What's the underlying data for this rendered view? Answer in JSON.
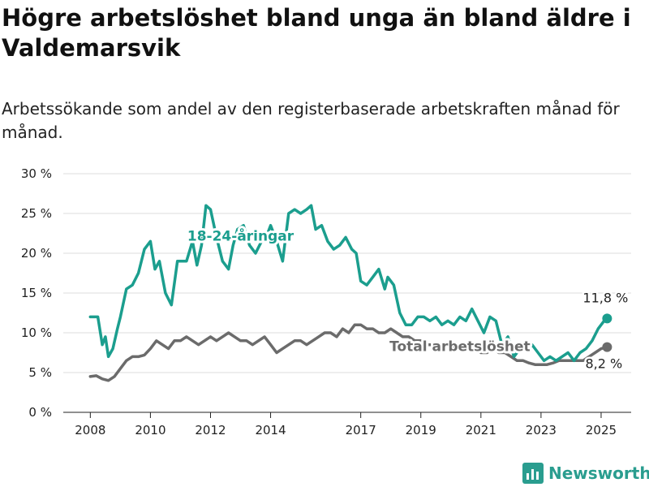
{
  "title": "Högre arbetslöshet bland unga än bland äldre i Valdemarsvik",
  "subtitle": "Arbetssökande som andel av den registerbaserade arbetskraften månad för månad.",
  "logo_text": "Newsworthy",
  "colors": {
    "youth": "#1b9e8e",
    "total": "#6b6b6b",
    "brand": "#2a9d8f"
  },
  "chart_data": {
    "type": "line",
    "y_ticks": [
      "0 %",
      "5 %",
      "10 %",
      "15 %",
      "20 %",
      "25 %",
      "30 %"
    ],
    "ylim": [
      0,
      30
    ],
    "x_ticks": [
      "2008",
      "2010",
      "2012",
      "2014",
      "2017",
      "2019",
      "2021",
      "2023",
      "2025"
    ],
    "x_tick_values": [
      2008,
      2010,
      2012,
      2014,
      2017,
      2019,
      2021,
      2023,
      2025
    ],
    "xlim": [
      2007.1,
      2026
    ],
    "grid": true,
    "series": [
      {
        "name": "18-24-åringar",
        "end_label": "11,8 %",
        "x": [
          2008.0,
          2008.25,
          2008.4,
          2008.5,
          2008.6,
          2008.75,
          2008.9,
          2009.0,
          2009.2,
          2009.4,
          2009.6,
          2009.8,
          2010.0,
          2010.15,
          2010.3,
          2010.5,
          2010.7,
          2010.9,
          2011.0,
          2011.2,
          2011.4,
          2011.55,
          2011.7,
          2011.85,
          2012.0,
          2012.2,
          2012.4,
          2012.6,
          2012.75,
          2012.9,
          2013.1,
          2013.3,
          2013.5,
          2013.7,
          2013.9,
          2014.0,
          2014.2,
          2014.4,
          2014.6,
          2014.8,
          2015.0,
          2015.2,
          2015.35,
          2015.5,
          2015.7,
          2015.9,
          2016.1,
          2016.3,
          2016.5,
          2016.7,
          2016.85,
          2017.0,
          2017.2,
          2017.4,
          2017.6,
          2017.8,
          2017.9,
          2018.1,
          2018.3,
          2018.5,
          2018.7,
          2018.9,
          2019.1,
          2019.3,
          2019.5,
          2019.7,
          2019.9,
          2020.1,
          2020.3,
          2020.5,
          2020.7,
          2020.9,
          2021.1,
          2021.3,
          2021.5,
          2021.7,
          2021.9,
          2022.1,
          2022.3,
          2022.5,
          2022.7,
          2022.9,
          2023.1,
          2023.3,
          2023.5,
          2023.7,
          2023.9,
          2024.1,
          2024.3,
          2024.5,
          2024.7,
          2024.9,
          2025.1,
          2025.2
        ],
        "values": [
          12.0,
          12.0,
          8.5,
          9.5,
          7.0,
          8.0,
          10.5,
          12.0,
          15.5,
          16.0,
          17.5,
          20.5,
          21.5,
          18.0,
          19.0,
          15.0,
          13.5,
          19.0,
          19.0,
          19.0,
          21.5,
          18.5,
          21.0,
          26.0,
          25.5,
          22.0,
          19.0,
          18.0,
          21.0,
          23.0,
          23.5,
          21.0,
          20.0,
          21.5,
          22.5,
          23.5,
          21.5,
          19.0,
          25.0,
          25.5,
          25.0,
          25.5,
          26.0,
          23.0,
          23.5,
          21.5,
          20.5,
          21.0,
          22.0,
          20.5,
          20.0,
          16.5,
          16.0,
          17.0,
          18.0,
          15.5,
          17.0,
          16.0,
          12.5,
          11.0,
          11.0,
          12.0,
          12.0,
          11.5,
          12.0,
          11.0,
          11.5,
          11.0,
          12.0,
          11.5,
          13.0,
          11.5,
          10.0,
          12.0,
          11.5,
          8.5,
          9.5,
          7.0,
          8.0,
          8.0,
          8.5,
          7.5,
          6.5,
          7.0,
          6.5,
          7.0,
          7.5,
          6.5,
          7.5,
          8.0,
          9.0,
          10.5,
          11.5,
          11.8
        ]
      },
      {
        "name": "Total arbetslöshet",
        "end_label": "8,2 %",
        "x": [
          2008.0,
          2008.2,
          2008.4,
          2008.6,
          2008.8,
          2009.0,
          2009.2,
          2009.4,
          2009.6,
          2009.8,
          2010.0,
          2010.2,
          2010.4,
          2010.6,
          2010.8,
          2011.0,
          2011.2,
          2011.4,
          2011.6,
          2011.8,
          2012.0,
          2012.2,
          2012.4,
          2012.6,
          2012.8,
          2013.0,
          2013.2,
          2013.4,
          2013.6,
          2013.8,
          2014.0,
          2014.2,
          2014.4,
          2014.6,
          2014.8,
          2015.0,
          2015.2,
          2015.4,
          2015.6,
          2015.8,
          2016.0,
          2016.2,
          2016.4,
          2016.6,
          2016.8,
          2017.0,
          2017.2,
          2017.4,
          2017.6,
          2017.8,
          2018.0,
          2018.2,
          2018.4,
          2018.6,
          2018.8,
          2019.0,
          2019.2,
          2019.4,
          2019.6,
          2019.8,
          2020.0,
          2020.2,
          2020.4,
          2020.6,
          2020.8,
          2021.0,
          2021.2,
          2021.4,
          2021.6,
          2021.8,
          2022.0,
          2022.2,
          2022.4,
          2022.6,
          2022.8,
          2023.0,
          2023.2,
          2023.4,
          2023.6,
          2023.8,
          2024.0,
          2024.2,
          2024.4,
          2024.6,
          2024.8,
          2025.0,
          2025.2
        ],
        "values": [
          4.5,
          4.6,
          4.2,
          4.0,
          4.5,
          5.5,
          6.5,
          7.0,
          7.0,
          7.2,
          8.0,
          9.0,
          8.5,
          8.0,
          9.0,
          9.0,
          9.5,
          9.0,
          8.5,
          9.0,
          9.5,
          9.0,
          9.5,
          10.0,
          9.5,
          9.0,
          9.0,
          8.5,
          9.0,
          9.5,
          8.5,
          7.5,
          8.0,
          8.5,
          9.0,
          9.0,
          8.5,
          9.0,
          9.5,
          10.0,
          10.0,
          9.5,
          10.5,
          10.0,
          11.0,
          11.0,
          10.5,
          10.5,
          10.0,
          10.0,
          10.5,
          10.0,
          9.5,
          9.5,
          9.0,
          9.0,
          8.5,
          8.5,
          8.0,
          8.0,
          8.5,
          8.0,
          8.5,
          8.0,
          8.0,
          7.5,
          7.5,
          8.0,
          7.5,
          7.5,
          7.0,
          6.5,
          6.5,
          6.2,
          6.0,
          6.0,
          6.0,
          6.2,
          6.5,
          6.5,
          6.5,
          6.5,
          6.5,
          7.0,
          7.5,
          8.0,
          8.2
        ]
      }
    ]
  }
}
